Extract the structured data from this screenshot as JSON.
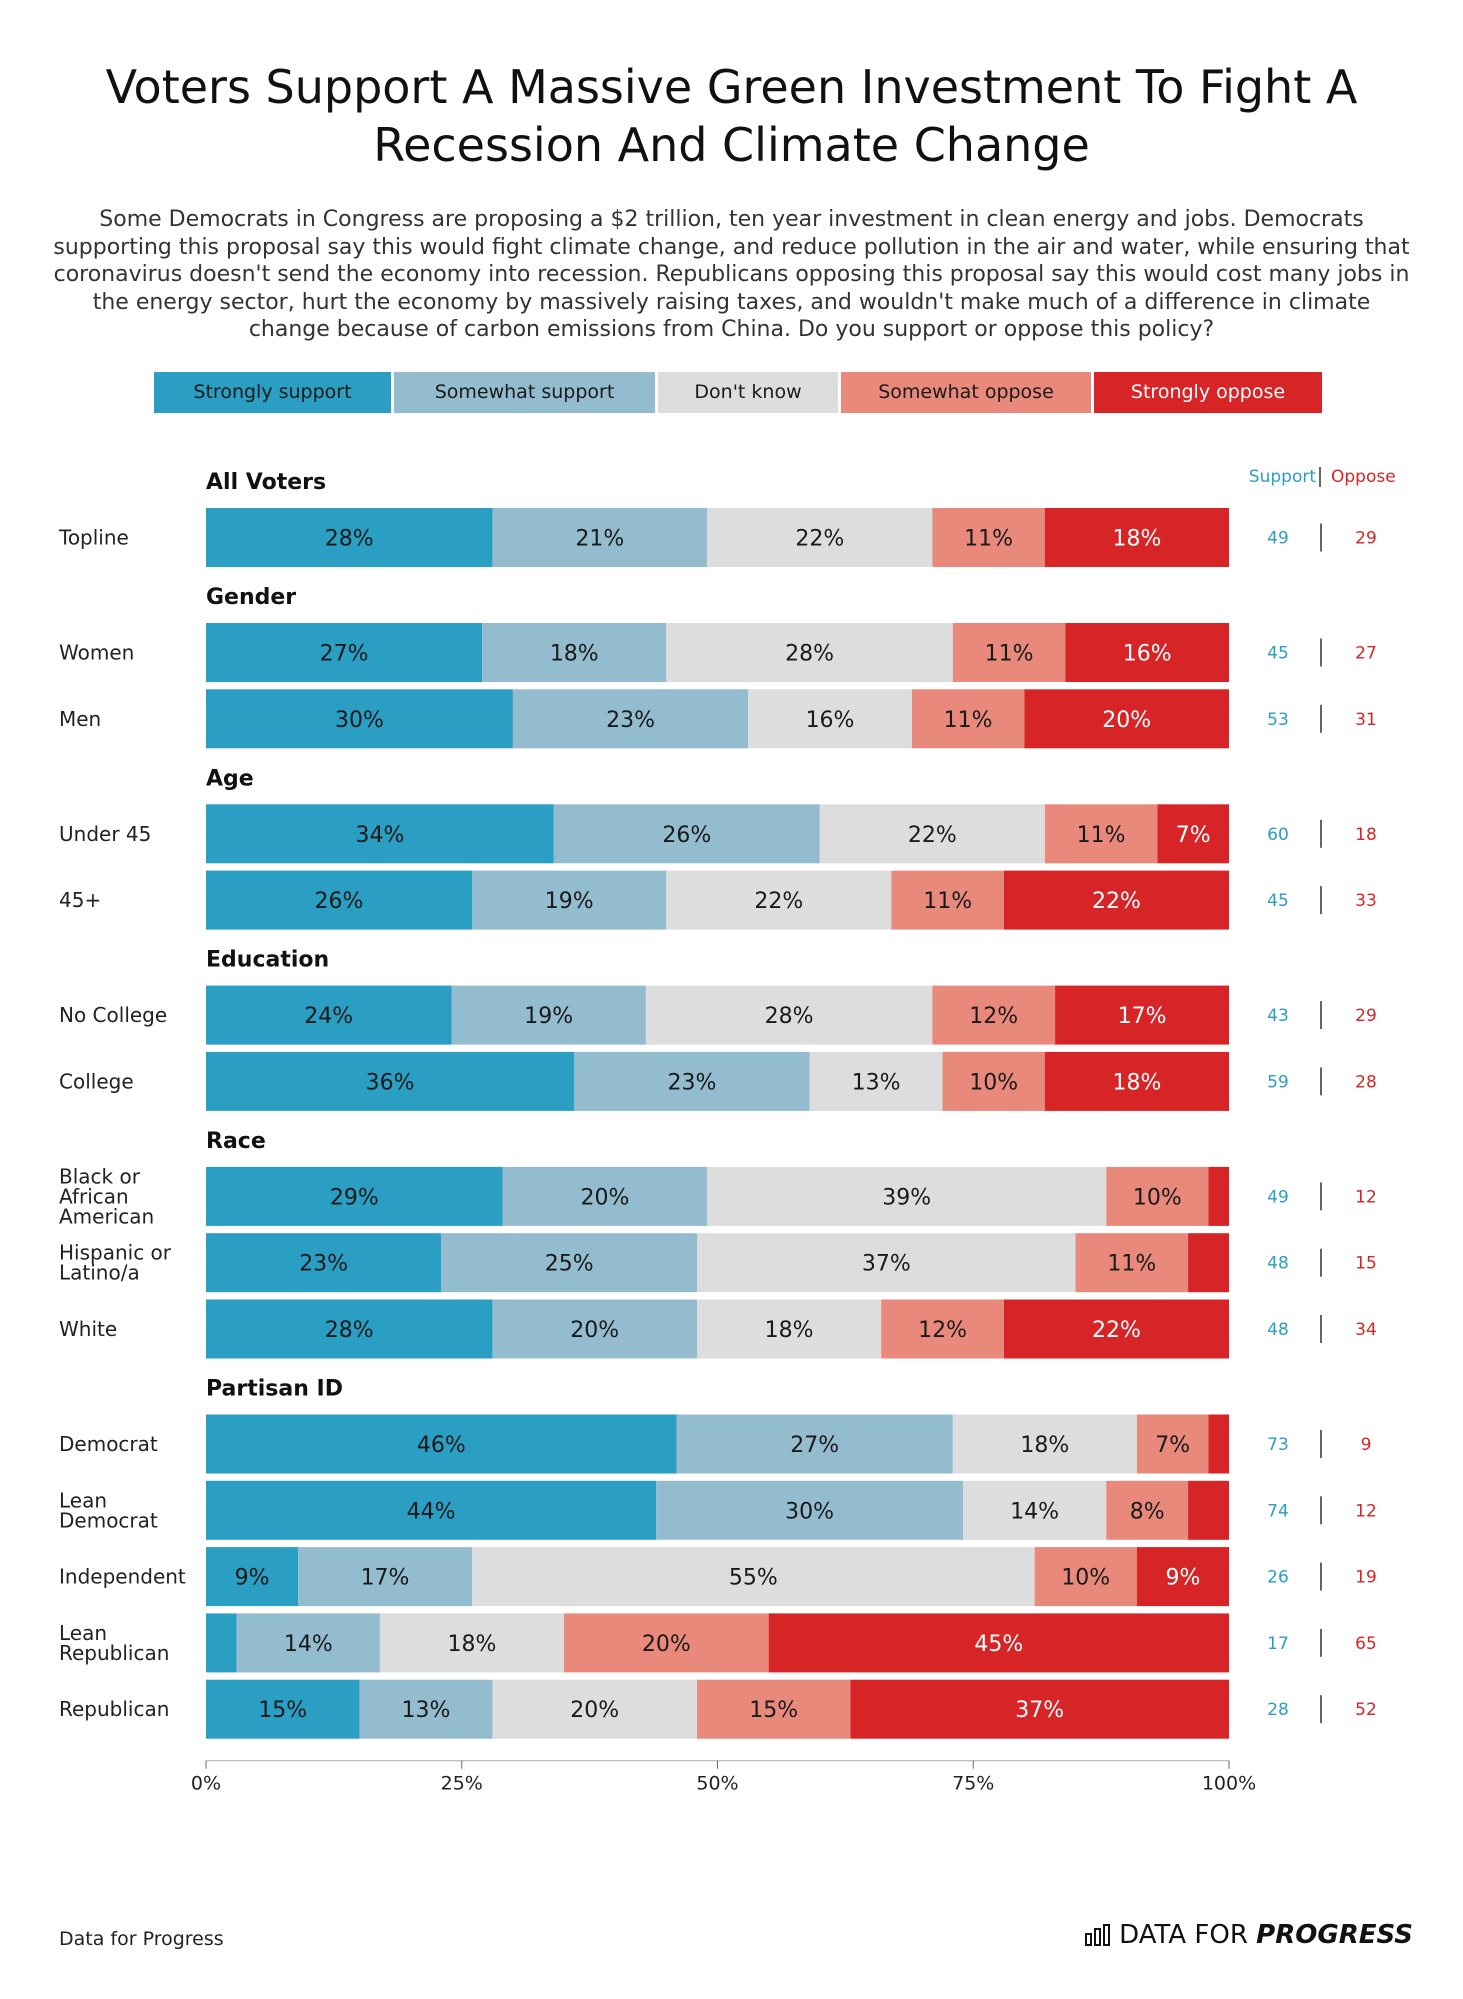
{
  "title": "Voters Support A Massive Green Investment To Fight A Recession And Climate Change",
  "subtitle": "Some Democrats in Congress are proposing a $2 trillion, ten year investment in clean energy and jobs. Democrats supporting this proposal say this would fight climate change, and reduce pollution in the air and water, while ensuring that coronavirus doesn't send the economy into recession. Republicans opposing this proposal say this would cost many jobs in the energy sector, hurt the economy by massively raising taxes, and wouldn't make much of a difference in climate change because of carbon emissions from China. Do you support or oppose this policy?",
  "legend": [
    {
      "label": "Strongly support",
      "color": "#2b9ec3",
      "text_color": "#1a1a1a"
    },
    {
      "label": "Somewhat support",
      "color": "#93bccf",
      "text_color": "#1a1a1a"
    },
    {
      "label": "Don't know",
      "color": "#dddddd",
      "text_color": "#1a1a1a"
    },
    {
      "label": "Somewhat oppose",
      "color": "#e8897b",
      "text_color": "#1a1a1a"
    },
    {
      "label": "Strongly oppose",
      "color": "#d72426",
      "text_color": "#ffffff"
    }
  ],
  "summary_headers": {
    "support": "Support",
    "oppose": "Oppose",
    "support_color": "#2b9ec3",
    "oppose_color": "#d72426"
  },
  "footer": {
    "source": "Data for Progress",
    "logo_light": "DATA FOR",
    "logo_bold": "PROGRESS"
  },
  "chart_data": {
    "type": "bar",
    "orientation": "horizontal-stacked-100",
    "x_ticks": [
      "0%",
      "25%",
      "50%",
      "75%",
      "100%"
    ],
    "xlim": [
      0,
      100
    ],
    "series_names": [
      "Strongly support",
      "Somewhat support",
      "Don't know",
      "Somewhat oppose",
      "Strongly oppose"
    ],
    "groups": [
      {
        "name": "All Voters",
        "rows": [
          {
            "label": [
              "Topline"
            ],
            "values": [
              28,
              21,
              22,
              11,
              18
            ],
            "support": 49,
            "oppose": 29
          }
        ]
      },
      {
        "name": "Gender",
        "rows": [
          {
            "label": [
              "Women"
            ],
            "values": [
              27,
              18,
              28,
              11,
              16
            ],
            "support": 45,
            "oppose": 27
          },
          {
            "label": [
              "Men"
            ],
            "values": [
              30,
              23,
              16,
              11,
              20
            ],
            "support": 53,
            "oppose": 31
          }
        ]
      },
      {
        "name": "Age",
        "rows": [
          {
            "label": [
              "Under 45"
            ],
            "values": [
              34,
              26,
              22,
              11,
              7
            ],
            "support": 60,
            "oppose": 18
          },
          {
            "label": [
              "45+"
            ],
            "values": [
              26,
              19,
              22,
              11,
              22
            ],
            "support": 45,
            "oppose": 33
          }
        ]
      },
      {
        "name": "Education",
        "rows": [
          {
            "label": [
              "No College"
            ],
            "values": [
              24,
              19,
              28,
              12,
              17
            ],
            "support": 43,
            "oppose": 29
          },
          {
            "label": [
              "College"
            ],
            "values": [
              36,
              23,
              13,
              10,
              18
            ],
            "support": 59,
            "oppose": 28
          }
        ]
      },
      {
        "name": "Race",
        "rows": [
          {
            "label": [
              "Black or",
              "African",
              "American"
            ],
            "values": [
              29,
              20,
              39,
              10,
              2
            ],
            "support": 49,
            "oppose": 12
          },
          {
            "label": [
              "Hispanic or",
              "Latino/a"
            ],
            "values": [
              23,
              25,
              37,
              11,
              4
            ],
            "support": 48,
            "oppose": 15
          },
          {
            "label": [
              "White"
            ],
            "values": [
              28,
              20,
              18,
              12,
              22
            ],
            "support": 48,
            "oppose": 34
          }
        ]
      },
      {
        "name": "Partisan ID",
        "rows": [
          {
            "label": [
              "Democrat"
            ],
            "values": [
              46,
              27,
              18,
              7,
              2
            ],
            "support": 73,
            "oppose": 9
          },
          {
            "label": [
              "Lean",
              "Democrat"
            ],
            "values": [
              44,
              30,
              14,
              8,
              4
            ],
            "support": 74,
            "oppose": 12
          },
          {
            "label": [
              "Independent"
            ],
            "values": [
              9,
              17,
              55,
              10,
              9
            ],
            "support": 26,
            "oppose": 19
          },
          {
            "label": [
              "Lean",
              "Republican"
            ],
            "values": [
              3,
              14,
              18,
              20,
              45
            ],
            "support": 17,
            "oppose": 65
          },
          {
            "label": [
              "Republican"
            ],
            "values": [
              15,
              13,
              20,
              15,
              37
            ],
            "support": 28,
            "oppose": 52
          }
        ]
      }
    ],
    "min_label_value": 5
  }
}
